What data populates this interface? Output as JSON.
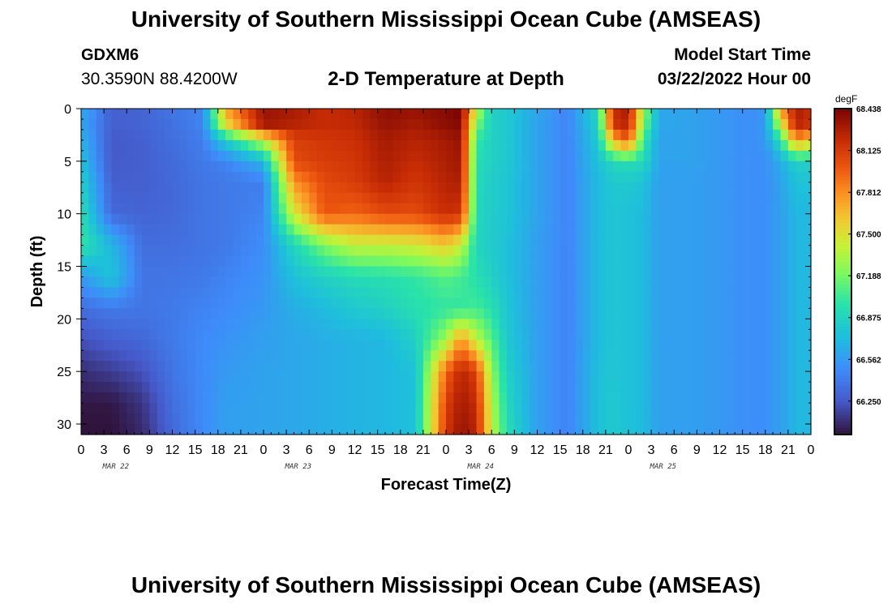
{
  "page": {
    "title": "University of Southern Mississippi Ocean Cube (AMSEAS)",
    "station": "GDXM6",
    "coordinates": "30.3590N  88.4200W",
    "subtitle": "2-D Temperature at Depth",
    "start_label": "Model Start Time",
    "start_value": "03/22/2022 Hour 00",
    "footer_title": "University of Southern Mississippi Ocean Cube (AMSEAS)"
  },
  "chart_data": {
    "type": "heatmap",
    "xlabel": "Forecast Time(Z)",
    "ylabel": "Depth (ft)",
    "x_range_hours": [
      0,
      96
    ],
    "y_range_ft": [
      0,
      31
    ],
    "y_inverted": true,
    "x_tick_labels": [
      "0",
      "3",
      "6",
      "9",
      "12",
      "15",
      "18",
      "21",
      "0",
      "3",
      "6",
      "9",
      "12",
      "15",
      "18",
      "21",
      "0",
      "3",
      "6",
      "9",
      "12",
      "15",
      "18",
      "21",
      "0",
      "3",
      "6",
      "9",
      "12",
      "15",
      "18",
      "21",
      "0"
    ],
    "day_labels": [
      "MAR 22",
      "MAR 23",
      "MAR 24",
      "MAR 25"
    ],
    "y_ticks": [
      0,
      5,
      10,
      15,
      20,
      25,
      30
    ],
    "colorbar": {
      "unit": "degF",
      "min": 66.0,
      "max": 68.438,
      "tick_labels": [
        "68.438",
        "68.125",
        "67.812",
        "67.500",
        "67.188",
        "66.875",
        "66.562",
        "66.250"
      ],
      "tick_values": [
        68.438,
        68.125,
        67.812,
        67.5,
        67.188,
        66.875,
        66.562,
        66.25
      ],
      "colormap": "turbo"
    },
    "depths_ft": [
      0,
      1.5,
      3,
      5,
      7,
      10,
      13,
      16,
      19,
      22,
      25,
      28,
      31
    ],
    "times_h": [
      0,
      4,
      8,
      12,
      16,
      19,
      24,
      28,
      32,
      36,
      40,
      44,
      48,
      50,
      52,
      54,
      56,
      60,
      64,
      68,
      70,
      72,
      74,
      76,
      80,
      84,
      88,
      90,
      92,
      94,
      96
    ],
    "temps_degF": [
      [
        66.65,
        66.28,
        66.3,
        66.38,
        66.45,
        67.75,
        68.35,
        68.3,
        68.2,
        68.25,
        68.38,
        68.35,
        68.4,
        68.45,
        67.4,
        66.85,
        66.8,
        66.62,
        66.45,
        66.9,
        68.2,
        68.3,
        67.3,
        66.62,
        66.6,
        66.55,
        66.5,
        66.55,
        67.75,
        68.3,
        68.2
      ],
      [
        66.62,
        66.28,
        66.3,
        66.36,
        66.45,
        67.5,
        68.3,
        68.25,
        68.2,
        68.22,
        68.35,
        68.3,
        68.38,
        68.4,
        67.2,
        66.85,
        66.8,
        66.6,
        66.45,
        66.85,
        68.15,
        68.25,
        67.2,
        66.62,
        66.6,
        66.55,
        66.5,
        66.55,
        67.4,
        68.25,
        68.15
      ],
      [
        66.68,
        66.25,
        66.28,
        66.35,
        66.42,
        66.82,
        67.4,
        68.1,
        68.15,
        68.18,
        68.3,
        68.25,
        68.3,
        68.35,
        67.0,
        66.85,
        66.8,
        66.6,
        66.45,
        66.8,
        67.7,
        68.0,
        67.0,
        66.6,
        66.6,
        66.55,
        66.5,
        66.55,
        66.95,
        67.8,
        67.6
      ],
      [
        66.75,
        66.25,
        66.28,
        66.33,
        66.4,
        66.45,
        66.7,
        68.05,
        68.12,
        68.15,
        68.28,
        68.2,
        68.28,
        68.32,
        66.95,
        66.85,
        66.8,
        66.6,
        66.45,
        66.75,
        66.9,
        66.95,
        66.9,
        66.6,
        66.6,
        66.55,
        66.5,
        66.5,
        66.65,
        66.85,
        66.85
      ],
      [
        66.85,
        66.28,
        66.28,
        66.32,
        66.38,
        66.4,
        66.42,
        67.8,
        68.05,
        68.12,
        68.25,
        68.15,
        68.25,
        68.28,
        66.92,
        66.82,
        66.78,
        66.6,
        66.45,
        66.72,
        66.8,
        66.8,
        66.75,
        66.58,
        66.58,
        66.55,
        66.5,
        66.5,
        66.6,
        66.75,
        66.75
      ],
      [
        66.95,
        66.32,
        66.3,
        66.32,
        66.38,
        66.4,
        66.45,
        67.45,
        68.0,
        67.95,
        68.05,
        68.05,
        68.2,
        68.15,
        66.9,
        66.82,
        66.78,
        66.6,
        66.45,
        66.72,
        66.78,
        66.75,
        66.72,
        66.58,
        66.58,
        66.55,
        66.5,
        66.5,
        66.58,
        66.7,
        66.7
      ],
      [
        67.0,
        66.7,
        66.35,
        66.35,
        66.38,
        66.4,
        66.5,
        66.88,
        67.2,
        67.4,
        67.4,
        67.45,
        67.6,
        67.4,
        66.88,
        66.82,
        66.75,
        66.58,
        66.45,
        66.72,
        66.78,
        66.75,
        66.72,
        66.58,
        66.58,
        66.55,
        66.5,
        66.5,
        66.58,
        66.7,
        66.7
      ],
      [
        66.55,
        66.78,
        66.38,
        66.38,
        66.4,
        66.45,
        66.52,
        66.75,
        66.85,
        66.92,
        66.95,
        67.0,
        67.1,
        67.05,
        66.95,
        66.85,
        66.75,
        66.58,
        66.45,
        66.72,
        66.78,
        66.75,
        66.72,
        66.58,
        66.58,
        66.55,
        66.5,
        66.5,
        66.58,
        66.7,
        66.7
      ],
      [
        66.35,
        66.4,
        66.38,
        66.4,
        66.45,
        66.48,
        66.55,
        66.65,
        66.72,
        66.8,
        66.85,
        66.95,
        67.0,
        67.0,
        67.05,
        66.95,
        66.78,
        66.58,
        66.45,
        66.72,
        66.78,
        66.75,
        66.72,
        66.58,
        66.58,
        66.55,
        66.5,
        66.5,
        66.58,
        66.7,
        66.7
      ],
      [
        66.22,
        66.28,
        66.32,
        66.4,
        66.48,
        66.52,
        66.58,
        66.62,
        66.65,
        66.68,
        66.7,
        66.85,
        67.3,
        67.8,
        67.4,
        67.1,
        66.8,
        66.58,
        66.45,
        66.72,
        66.78,
        66.75,
        66.72,
        66.58,
        66.58,
        66.55,
        66.5,
        66.5,
        66.58,
        66.7,
        66.7
      ],
      [
        66.1,
        66.15,
        66.22,
        66.38,
        66.48,
        66.55,
        66.6,
        66.62,
        66.65,
        66.68,
        66.7,
        66.75,
        67.95,
        68.25,
        68.1,
        67.25,
        66.85,
        66.58,
        66.45,
        66.75,
        66.78,
        66.75,
        66.72,
        66.58,
        66.58,
        66.55,
        66.5,
        66.5,
        66.58,
        66.7,
        66.7
      ],
      [
        66.02,
        66.02,
        66.12,
        66.35,
        66.48,
        66.58,
        66.6,
        66.62,
        66.65,
        66.68,
        66.7,
        66.75,
        68.1,
        68.3,
        68.2,
        67.35,
        66.9,
        66.58,
        66.45,
        66.75,
        66.8,
        66.75,
        66.72,
        66.58,
        66.58,
        66.55,
        66.5,
        66.5,
        66.58,
        66.7,
        66.7
      ],
      [
        66.0,
        66.0,
        66.08,
        66.32,
        66.48,
        66.58,
        66.6,
        66.62,
        66.65,
        66.68,
        66.7,
        66.75,
        68.15,
        68.35,
        68.25,
        67.4,
        66.95,
        66.58,
        66.45,
        66.75,
        66.8,
        66.75,
        66.72,
        66.58,
        66.58,
        66.55,
        66.5,
        66.5,
        66.58,
        66.7,
        66.7
      ]
    ]
  }
}
